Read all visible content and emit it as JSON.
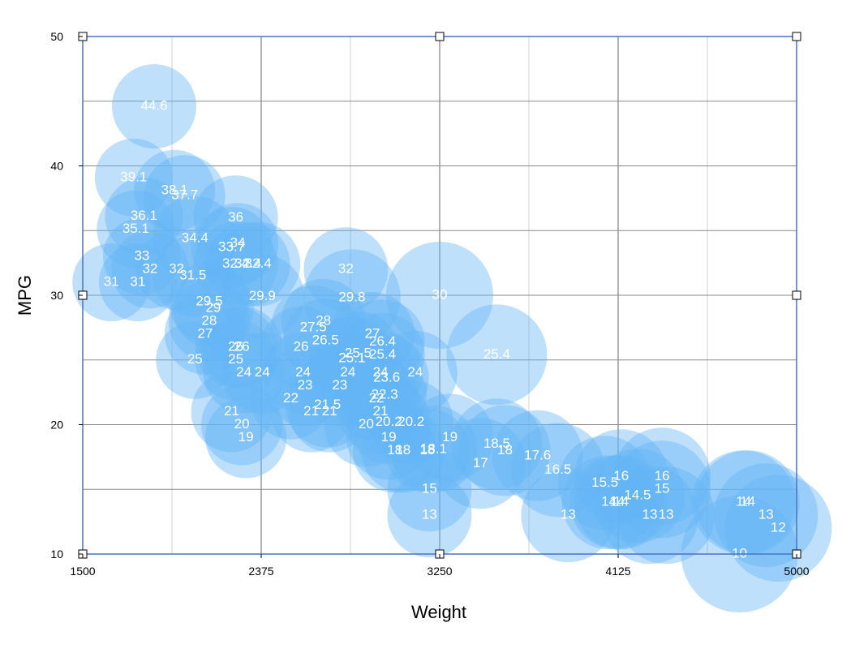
{
  "chart_data": {
    "type": "scatter",
    "xlabel": "Weight",
    "ylabel": "MPG",
    "xlim": [
      1500,
      5000
    ],
    "ylim": [
      10,
      50
    ],
    "x_ticks": [
      "1500",
      "2375",
      "3250",
      "4125",
      "5000"
    ],
    "y_ticks": [
      "10",
      "20",
      "30",
      "40",
      "50"
    ],
    "grid": true,
    "bubble_color": "#63B5F6",
    "points": [
      {
        "x": 1850,
        "y": 44.6,
        "r": 52,
        "label": "44.6"
      },
      {
        "x": 1750,
        "y": 39.1,
        "r": 48,
        "label": "39.1"
      },
      {
        "x": 1950,
        "y": 38.1,
        "r": 50,
        "label": "38.1"
      },
      {
        "x": 2000,
        "y": 37.7,
        "r": 50,
        "label": "37.7"
      },
      {
        "x": 1800,
        "y": 36.1,
        "r": 48,
        "label": "36.1"
      },
      {
        "x": 2250,
        "y": 36.0,
        "r": 52,
        "label": "36"
      },
      {
        "x": 1760,
        "y": 35.1,
        "r": 48,
        "label": "35.1"
      },
      {
        "x": 2050,
        "y": 34.4,
        "r": 52,
        "label": "34.4"
      },
      {
        "x": 2260,
        "y": 34.0,
        "r": 50,
        "label": "34"
      },
      {
        "x": 2230,
        "y": 33.7,
        "r": 50,
        "label": "33.7"
      },
      {
        "x": 1790,
        "y": 33.0,
        "r": 48,
        "label": "33"
      },
      {
        "x": 2250,
        "y": 32.4,
        "r": 52,
        "label": "32.4"
      },
      {
        "x": 2310,
        "y": 32.4,
        "r": 52,
        "label": "32.4"
      },
      {
        "x": 2360,
        "y": 32.4,
        "r": 52,
        "label": "32.4"
      },
      {
        "x": 1830,
        "y": 32.0,
        "r": 48,
        "label": "32"
      },
      {
        "x": 1960,
        "y": 32.0,
        "r": 50,
        "label": "32"
      },
      {
        "x": 2790,
        "y": 32.0,
        "r": 52,
        "label": "32"
      },
      {
        "x": 2040,
        "y": 31.5,
        "r": 50,
        "label": "31.5"
      },
      {
        "x": 1640,
        "y": 31.0,
        "r": 48,
        "label": "31"
      },
      {
        "x": 1770,
        "y": 31.0,
        "r": 48,
        "label": "31"
      },
      {
        "x": 3250,
        "y": 30.0,
        "r": 66,
        "label": "30"
      },
      {
        "x": 2380,
        "y": 29.9,
        "r": 52,
        "label": "29.9"
      },
      {
        "x": 2820,
        "y": 29.8,
        "r": 60,
        "label": "29.8"
      },
      {
        "x": 2120,
        "y": 29.5,
        "r": 50,
        "label": "29.5"
      },
      {
        "x": 2140,
        "y": 29.0,
        "r": 50,
        "label": "29"
      },
      {
        "x": 2120,
        "y": 28.0,
        "r": 50,
        "label": "28"
      },
      {
        "x": 2680,
        "y": 28.0,
        "r": 52,
        "label": "28"
      },
      {
        "x": 2630,
        "y": 27.5,
        "r": 52,
        "label": "27.5"
      },
      {
        "x": 2100,
        "y": 27.0,
        "r": 50,
        "label": "27"
      },
      {
        "x": 2920,
        "y": 27.0,
        "r": 52,
        "label": "27"
      },
      {
        "x": 2690,
        "y": 26.5,
        "r": 52,
        "label": "26.5"
      },
      {
        "x": 2970,
        "y": 26.4,
        "r": 52,
        "label": "26.4"
      },
      {
        "x": 2250,
        "y": 26.0,
        "r": 50,
        "label": "26"
      },
      {
        "x": 2280,
        "y": 26.0,
        "r": 50,
        "label": "26"
      },
      {
        "x": 2570,
        "y": 26.0,
        "r": 50,
        "label": "26"
      },
      {
        "x": 2850,
        "y": 25.5,
        "r": 52,
        "label": "25.5"
      },
      {
        "x": 2970,
        "y": 25.4,
        "r": 52,
        "label": "25.4"
      },
      {
        "x": 3530,
        "y": 25.4,
        "r": 62,
        "label": "25.4"
      },
      {
        "x": 2820,
        "y": 25.1,
        "r": 52,
        "label": "25.1"
      },
      {
        "x": 2050,
        "y": 25.0,
        "r": 48,
        "label": "25"
      },
      {
        "x": 2250,
        "y": 25.0,
        "r": 50,
        "label": "25"
      },
      {
        "x": 2800,
        "y": 24.0,
        "r": 50,
        "label": "24"
      },
      {
        "x": 2580,
        "y": 24.0,
        "r": 50,
        "label": "24"
      },
      {
        "x": 2380,
        "y": 24.0,
        "r": 50,
        "label": "24"
      },
      {
        "x": 2290,
        "y": 24.0,
        "r": 50,
        "label": "24"
      },
      {
        "x": 2960,
        "y": 24.0,
        "r": 52,
        "label": "24"
      },
      {
        "x": 3130,
        "y": 24.0,
        "r": 52,
        "label": "24"
      },
      {
        "x": 2990,
        "y": 23.6,
        "r": 52,
        "label": "23.6"
      },
      {
        "x": 2590,
        "y": 23.0,
        "r": 50,
        "label": "23"
      },
      {
        "x": 2760,
        "y": 23.0,
        "r": 50,
        "label": "23"
      },
      {
        "x": 2980,
        "y": 22.3,
        "r": 52,
        "label": "22.3"
      },
      {
        "x": 2940,
        "y": 22.0,
        "r": 52,
        "label": "22"
      },
      {
        "x": 2520,
        "y": 22.0,
        "r": 50,
        "label": "22"
      },
      {
        "x": 2620,
        "y": 21.0,
        "r": 50,
        "label": "21"
      },
      {
        "x": 2700,
        "y": 21.5,
        "r": 52,
        "label": "21.5"
      },
      {
        "x": 2710,
        "y": 21.0,
        "r": 50,
        "label": "21"
      },
      {
        "x": 2960,
        "y": 21.0,
        "r": 52,
        "label": "21"
      },
      {
        "x": 2230,
        "y": 21.0,
        "r": 50,
        "label": "21"
      },
      {
        "x": 3000,
        "y": 20.2,
        "r": 52,
        "label": "20.2"
      },
      {
        "x": 3110,
        "y": 20.2,
        "r": 52,
        "label": "20.2"
      },
      {
        "x": 2890,
        "y": 20.0,
        "r": 52,
        "label": "20"
      },
      {
        "x": 2280,
        "y": 20.0,
        "r": 50,
        "label": "20"
      },
      {
        "x": 2300,
        "y": 19.0,
        "r": 50,
        "label": "19"
      },
      {
        "x": 3000,
        "y": 19.0,
        "r": 52,
        "label": "19"
      },
      {
        "x": 3300,
        "y": 19.0,
        "r": 54,
        "label": "19"
      },
      {
        "x": 3530,
        "y": 18.5,
        "r": 56,
        "label": "18.5"
      },
      {
        "x": 3220,
        "y": 18.1,
        "r": 54,
        "label": "18.1"
      },
      {
        "x": 3030,
        "y": 18.0,
        "r": 52,
        "label": "18"
      },
      {
        "x": 3070,
        "y": 18.0,
        "r": 52,
        "label": "18"
      },
      {
        "x": 3190,
        "y": 18.0,
        "r": 52,
        "label": "18"
      },
      {
        "x": 3570,
        "y": 18.0,
        "r": 56,
        "label": "18"
      },
      {
        "x": 3730,
        "y": 17.6,
        "r": 56,
        "label": "17.6"
      },
      {
        "x": 3450,
        "y": 17.0,
        "r": 56,
        "label": "17"
      },
      {
        "x": 3830,
        "y": 16.5,
        "r": 58,
        "label": "16.5"
      },
      {
        "x": 4140,
        "y": 16.0,
        "r": 58,
        "label": "16"
      },
      {
        "x": 4340,
        "y": 16.0,
        "r": 60,
        "label": "16"
      },
      {
        "x": 4060,
        "y": 15.5,
        "r": 58,
        "label": "15.5"
      },
      {
        "x": 3200,
        "y": 15.0,
        "r": 52,
        "label": "15"
      },
      {
        "x": 4340,
        "y": 15.0,
        "r": 60,
        "label": "15"
      },
      {
        "x": 4220,
        "y": 14.5,
        "r": 58,
        "label": "14.5"
      },
      {
        "x": 4080,
        "y": 14.0,
        "r": 58,
        "label": "14"
      },
      {
        "x": 4120,
        "y": 14.0,
        "r": 58,
        "label": "14"
      },
      {
        "x": 4140,
        "y": 14.0,
        "r": 58,
        "label": "14"
      },
      {
        "x": 4740,
        "y": 14.0,
        "r": 64,
        "label": "14"
      },
      {
        "x": 4760,
        "y": 14.0,
        "r": 64,
        "label": "14"
      },
      {
        "x": 3200,
        "y": 13.0,
        "r": 52,
        "label": "13"
      },
      {
        "x": 3880,
        "y": 13.0,
        "r": 58,
        "label": "13"
      },
      {
        "x": 4280,
        "y": 13.0,
        "r": 60,
        "label": "13"
      },
      {
        "x": 4360,
        "y": 13.0,
        "r": 60,
        "label": "13"
      },
      {
        "x": 4850,
        "y": 13.0,
        "r": 64,
        "label": "13"
      },
      {
        "x": 4910,
        "y": 12.0,
        "r": 66,
        "label": "12"
      },
      {
        "x": 4720,
        "y": 10.0,
        "r": 72,
        "label": "10"
      }
    ]
  }
}
